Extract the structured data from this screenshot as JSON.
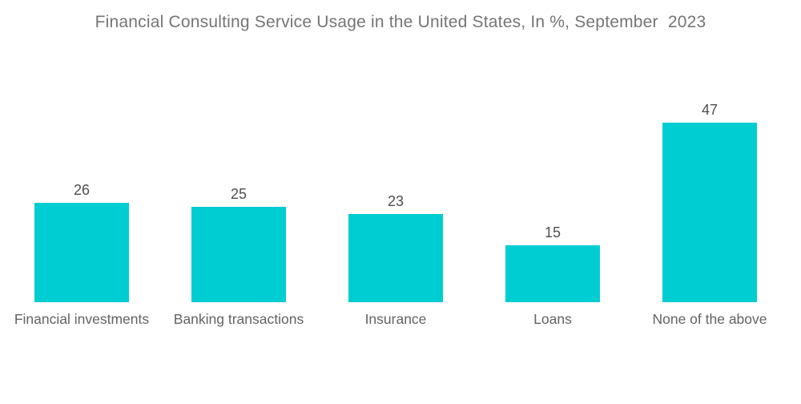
{
  "chart_data": {
    "type": "bar",
    "title": "Financial Consulting Service Usage in the United States, In %, September  2023",
    "categories": [
      "Financial investments",
      "Banking transactions",
      "Insurance",
      "Loans",
      "None of the above"
    ],
    "values": [
      26,
      25,
      23,
      15,
      47
    ],
    "xlabel": "",
    "ylabel": "",
    "ylim": [
      0,
      50
    ],
    "grid": false,
    "axes_visible": false,
    "value_labels_position": "above bars",
    "bar_color": "#00CDD2",
    "title_color": "#757575",
    "value_label_color": "#4f4f4f",
    "category_label_color": "#636363",
    "background_color": "#ffffff"
  }
}
